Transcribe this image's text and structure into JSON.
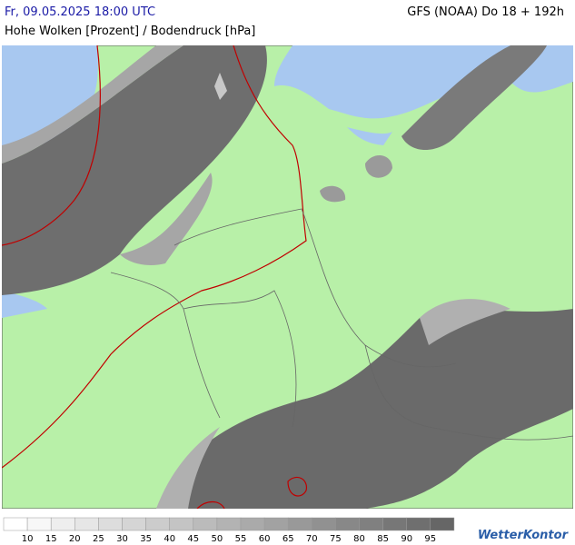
{
  "header": {
    "datetime": "Fr, 09.05.2025 18:00 UTC",
    "model": "GFS (NOAA) Do 18 + 192h",
    "subtitle": "Hohe Wolken [Prozent] / Bodendruck [hPa]"
  },
  "legend": {
    "labels": [
      "10",
      "15",
      "20",
      "25",
      "30",
      "35",
      "40",
      "45",
      "50",
      "55",
      "60",
      "65",
      "70",
      "75",
      "80",
      "85",
      "90",
      "95"
    ]
  },
  "logo": "WetterKontor"
}
